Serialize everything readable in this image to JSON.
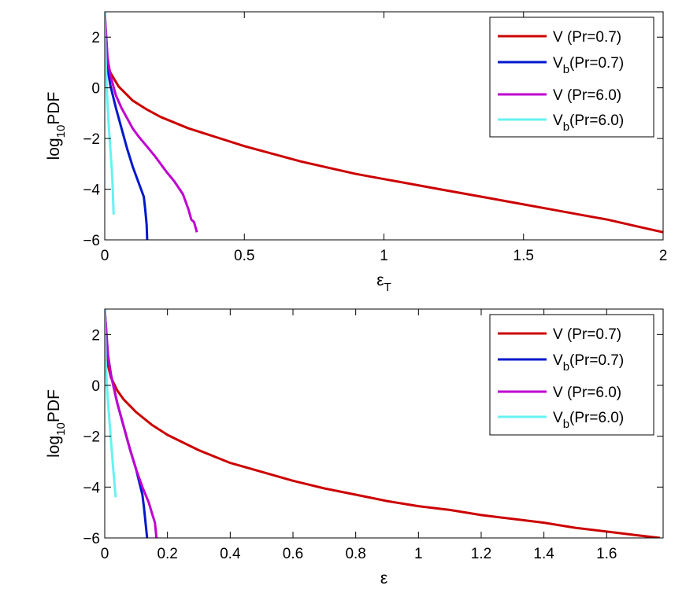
{
  "chart_data": [
    {
      "type": "line",
      "title": "",
      "xlabel": "ε",
      "xlabel_sub": "T",
      "ylabel": "log",
      "ylabel_sub": "10",
      "ylabel_tail": "PDF",
      "xlim": [
        0,
        2
      ],
      "ylim": [
        -6,
        3
      ],
      "xticks": [
        0,
        0.5,
        1,
        1.5,
        2
      ],
      "xtick_labels": [
        "0",
        "0.5",
        "1",
        "1.5",
        "2"
      ],
      "yticks": [
        -6,
        -4,
        -2,
        0,
        2
      ],
      "ytick_labels": [
        "−6",
        "−4",
        "−2",
        "0",
        "2"
      ],
      "legend_position": "top-right",
      "series": [
        {
          "name": "V",
          "label_main": "V",
          "label_sub": "",
          "label_tail": "  (Pr=0.7)",
          "color": "#cc0000",
          "x": [
            0,
            0.01,
            0.02,
            0.05,
            0.1,
            0.15,
            0.2,
            0.3,
            0.4,
            0.5,
            0.6,
            0.7,
            0.8,
            0.9,
            1.0,
            1.1,
            1.2,
            1.3,
            1.4,
            1.5,
            1.6,
            1.7,
            1.8,
            1.9,
            2.0
          ],
          "y": [
            3,
            1.0,
            0.6,
            0.05,
            -0.5,
            -0.85,
            -1.15,
            -1.6,
            -1.95,
            -2.3,
            -2.6,
            -2.9,
            -3.15,
            -3.4,
            -3.6,
            -3.8,
            -4.0,
            -4.2,
            -4.4,
            -4.6,
            -4.8,
            -5.0,
            -5.2,
            -5.45,
            -5.7
          ]
        },
        {
          "name": "Vb",
          "label_main": "V",
          "label_sub": "b",
          "label_tail": "(Pr=0.7)",
          "color": "#0018cc",
          "x": [
            0,
            0.005,
            0.01,
            0.02,
            0.04,
            0.06,
            0.08,
            0.1,
            0.12,
            0.13,
            0.14,
            0.145,
            0.15,
            0.152
          ],
          "y": [
            3,
            1.5,
            0.8,
            0.1,
            -0.8,
            -1.6,
            -2.4,
            -3.1,
            -3.7,
            -4.0,
            -4.3,
            -4.8,
            -5.4,
            -6.0
          ]
        },
        {
          "name": "V",
          "label_main": "V",
          "label_sub": "",
          "label_tail": "  (Pr=6.0)",
          "color": "#c000d0",
          "x": [
            0,
            0.01,
            0.02,
            0.04,
            0.06,
            0.08,
            0.1,
            0.12,
            0.15,
            0.18,
            0.2,
            0.22,
            0.25,
            0.28,
            0.3,
            0.31,
            0.32,
            0.33
          ],
          "y": [
            3,
            1.2,
            0.5,
            -0.3,
            -0.8,
            -1.2,
            -1.6,
            -1.9,
            -2.3,
            -2.7,
            -3.0,
            -3.3,
            -3.7,
            -4.2,
            -4.8,
            -5.2,
            -5.3,
            -5.7
          ]
        },
        {
          "name": "Vb",
          "label_main": "V",
          "label_sub": "b",
          "label_tail": "(Pr=6.0)",
          "color": "#66f2f2",
          "x": [
            0,
            0.003,
            0.006,
            0.01,
            0.015,
            0.02,
            0.025,
            0.028,
            0.03,
            0.032
          ],
          "y": [
            3,
            1.2,
            0.3,
            -0.6,
            -1.6,
            -2.4,
            -3.2,
            -3.8,
            -4.4,
            -5.0
          ]
        }
      ]
    },
    {
      "type": "line",
      "title": "",
      "xlabel": "ε",
      "xlabel_sub": "",
      "ylabel": "log",
      "ylabel_sub": "10",
      "ylabel_tail": "PDF",
      "xlim": [
        0,
        1.78
      ],
      "ylim": [
        -6,
        3
      ],
      "xticks": [
        0,
        0.2,
        0.4,
        0.6,
        0.8,
        1,
        1.2,
        1.4,
        1.6
      ],
      "xtick_labels": [
        "0",
        "0.2",
        "0.4",
        "0.6",
        "0.8",
        "1",
        "1.2",
        "1.4",
        "1.6"
      ],
      "yticks": [
        -6,
        -4,
        -2,
        0,
        2
      ],
      "ytick_labels": [
        "−6",
        "−4",
        "−2",
        "0",
        "2"
      ],
      "legend_position": "top-right",
      "series": [
        {
          "name": "V",
          "label_main": "V",
          "label_sub": "",
          "label_tail": "  (Pr=0.7)",
          "color": "#cc0000",
          "x": [
            0,
            0.01,
            0.02,
            0.04,
            0.06,
            0.08,
            0.1,
            0.15,
            0.2,
            0.3,
            0.4,
            0.5,
            0.6,
            0.7,
            0.8,
            0.9,
            1.0,
            1.1,
            1.2,
            1.3,
            1.4,
            1.5,
            1.6,
            1.7,
            1.77
          ],
          "y": [
            3,
            0.8,
            0.3,
            -0.2,
            -0.55,
            -0.8,
            -1.05,
            -1.55,
            -1.95,
            -2.55,
            -3.05,
            -3.4,
            -3.75,
            -4.05,
            -4.3,
            -4.55,
            -4.75,
            -4.9,
            -5.1,
            -5.25,
            -5.4,
            -5.6,
            -5.75,
            -5.9,
            -6.0
          ]
        },
        {
          "name": "Vb",
          "label_main": "V",
          "label_sub": "b",
          "label_tail": "(Pr=0.7)",
          "color": "#0018cc",
          "x": [
            0,
            0.01,
            0.02,
            0.04,
            0.06,
            0.08,
            0.1,
            0.11,
            0.12,
            0.125,
            0.13,
            0.135
          ],
          "y": [
            3,
            1.2,
            0.4,
            -0.7,
            -1.6,
            -2.5,
            -3.3,
            -3.8,
            -4.3,
            -4.8,
            -5.4,
            -6.0
          ]
        },
        {
          "name": "V",
          "label_main": "V",
          "label_sub": "",
          "label_tail": "  (Pr=6.0)",
          "color": "#c000d0",
          "x": [
            0,
            0.01,
            0.02,
            0.04,
            0.06,
            0.08,
            0.1,
            0.12,
            0.14,
            0.15,
            0.16,
            0.165
          ],
          "y": [
            3,
            1.2,
            0.4,
            -0.7,
            -1.6,
            -2.5,
            -3.3,
            -4.0,
            -4.6,
            -5.0,
            -5.4,
            -6.0
          ]
        },
        {
          "name": "Vb",
          "label_main": "V",
          "label_sub": "b",
          "label_tail": "(Pr=6.0)",
          "color": "#66f2f2",
          "x": [
            0,
            0.003,
            0.006,
            0.01,
            0.015,
            0.02,
            0.025,
            0.03,
            0.035
          ],
          "y": [
            3,
            1.0,
            0.2,
            -0.6,
            -1.4,
            -2.2,
            -3.0,
            -3.7,
            -4.4
          ]
        }
      ]
    }
  ]
}
